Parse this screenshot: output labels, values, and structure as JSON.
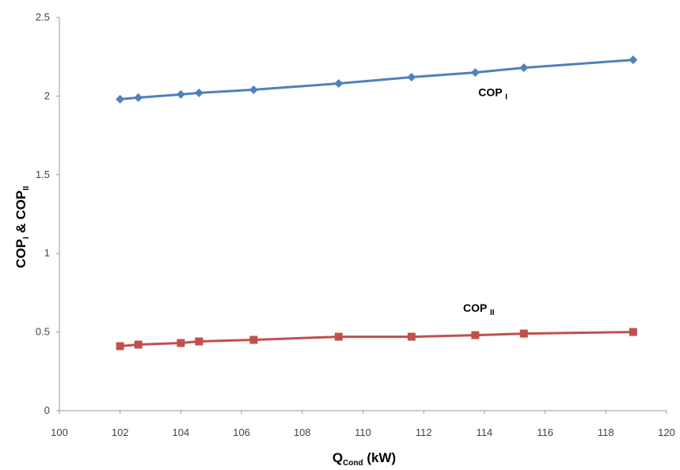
{
  "chart_data": {
    "type": "line",
    "xlabel": {
      "main": "Q",
      "sub": "Cond",
      "suffix": " (kW)"
    },
    "ylabel": {
      "a": "COP",
      "a_sub": "I",
      "mid": " & ",
      "b": "COP",
      "b_sub": "II"
    },
    "xlim": [
      100,
      120
    ],
    "ylim": [
      0,
      2.5
    ],
    "x_ticks": [
      "100",
      "102",
      "104",
      "106",
      "108",
      "110",
      "112",
      "114",
      "116",
      "118",
      "120"
    ],
    "y_ticks": [
      "0",
      "0.5",
      "1",
      "1.5",
      "2",
      "2.5"
    ],
    "grid": false,
    "legend": "none",
    "series": [
      {
        "name": "COP I",
        "color": "#4f81bd",
        "marker": "diamond",
        "label_main": "COP",
        "label_sub": "I",
        "x": [
          102.0,
          102.6,
          104.0,
          104.6,
          106.4,
          109.2,
          111.6,
          113.7,
          115.3,
          118.9
        ],
        "y": [
          1.98,
          1.99,
          2.01,
          2.02,
          2.04,
          2.08,
          2.12,
          2.15,
          2.18,
          2.23
        ]
      },
      {
        "name": "COP II",
        "color": "#c0504d",
        "marker": "square",
        "label_main": "COP",
        "label_sub": "II",
        "x": [
          102.0,
          102.6,
          104.0,
          104.6,
          106.4,
          109.2,
          111.6,
          113.7,
          115.3,
          118.9
        ],
        "y": [
          0.41,
          0.42,
          0.43,
          0.44,
          0.45,
          0.47,
          0.47,
          0.48,
          0.49,
          0.5
        ]
      }
    ]
  }
}
